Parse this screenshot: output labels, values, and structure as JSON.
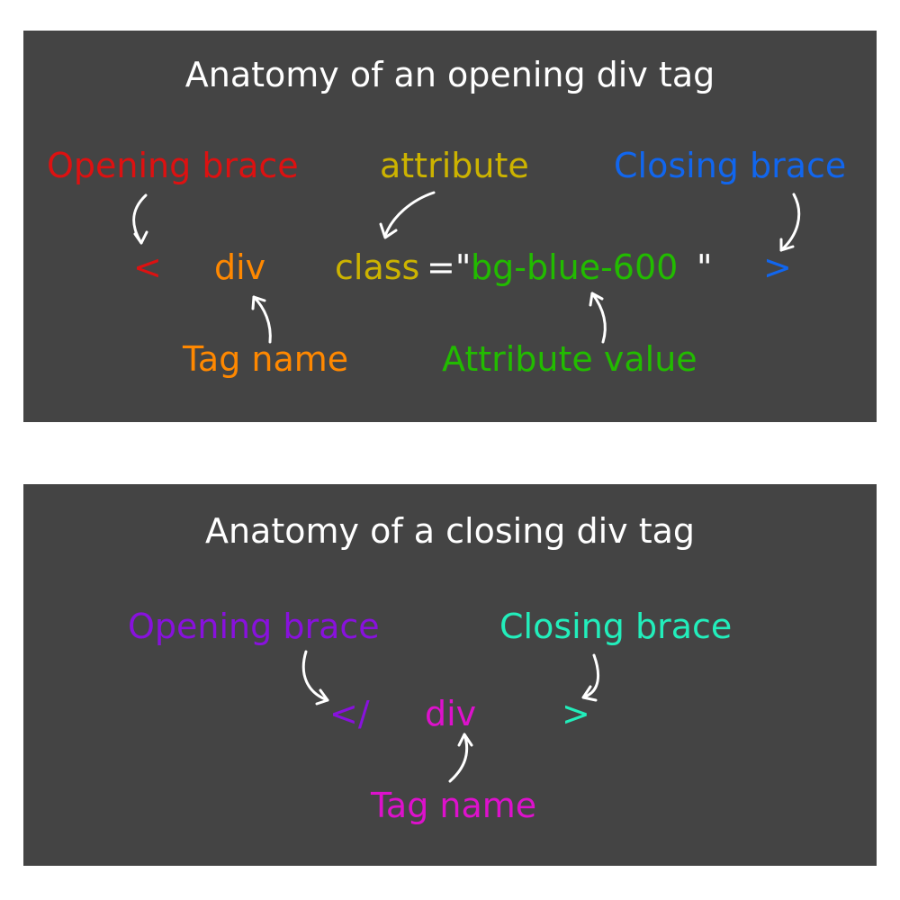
{
  "opening": {
    "title": "Anatomy of an opening div tag",
    "labels": {
      "opening_brace": "Opening brace",
      "attribute": "attribute",
      "closing_brace": "Closing brace",
      "tag_name": "Tag name",
      "attribute_value": "Attribute value"
    },
    "code": {
      "open_symbol": "<",
      "tag": "div",
      "attr": "class",
      "equals_quote": "=\"",
      "value": "bg-blue-600",
      "end_quote": "\"",
      "close_symbol": ">"
    }
  },
  "closing": {
    "title": "Anatomy of a closing div tag",
    "labels": {
      "opening_brace": "Opening brace",
      "closing_brace": "Closing brace",
      "tag_name": "Tag name"
    },
    "code": {
      "open_symbol": "</",
      "tag": "div",
      "close_symbol": ">"
    }
  },
  "colors": {
    "panel_background": "#444444",
    "opening_brace": "#dd1111",
    "attribute": "#ccb300",
    "closing_brace": "#1166ee",
    "tag_name": "#ff8800",
    "attribute_value": "#22bb00",
    "closing_tag_opening_brace": "#8811dd",
    "closing_tag_closing_brace": "#22eebb",
    "closing_tag_name": "#dd11cc",
    "arrow": "#ffffff"
  }
}
